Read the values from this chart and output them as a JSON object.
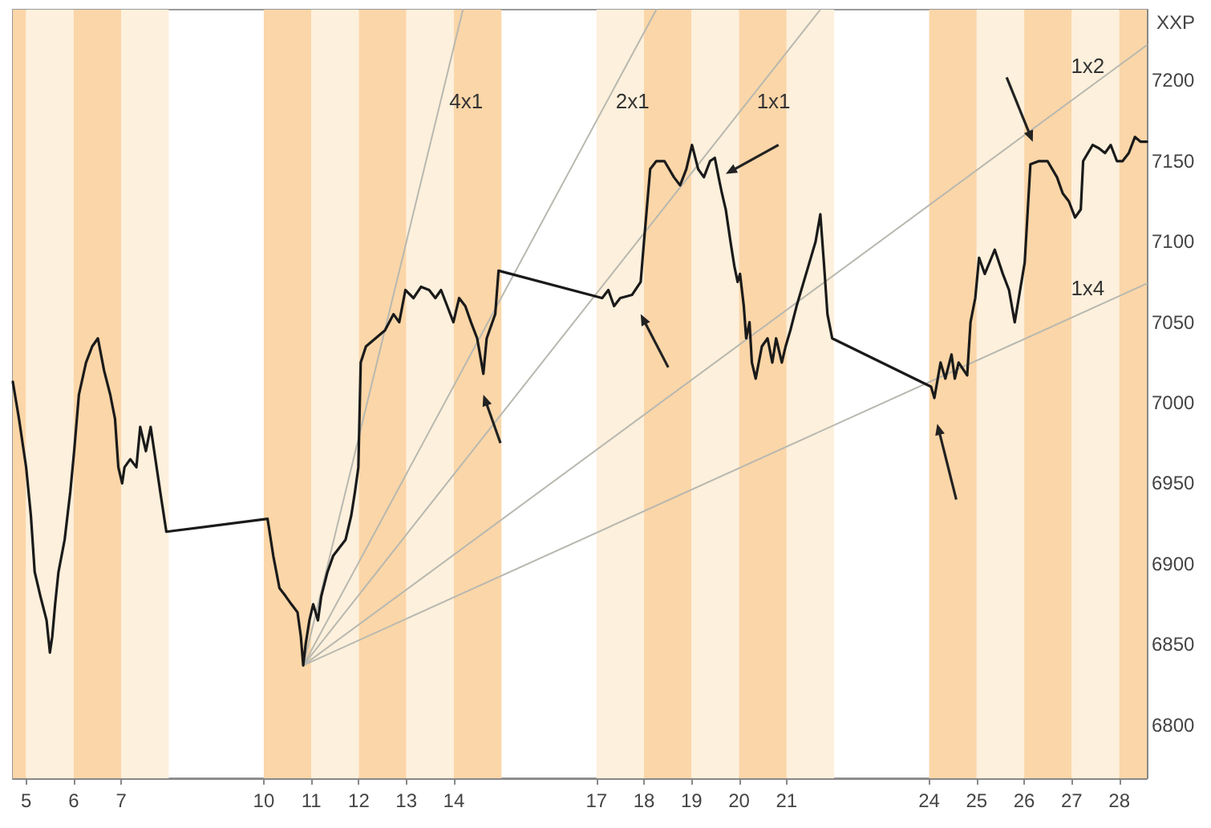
{
  "chart_data": {
    "type": "line",
    "ylabel": "XXP",
    "xlim": [
      4.72,
      28.58
    ],
    "xticks": [
      5,
      6,
      7,
      10,
      11,
      12,
      13,
      14,
      17,
      18,
      19,
      20,
      21,
      24,
      25,
      26,
      27,
      28
    ],
    "ylim": [
      6767,
      7244
    ],
    "yticks": [
      6800,
      6850,
      6900,
      6950,
      7000,
      7050,
      7100,
      7150,
      7200
    ],
    "grid": false,
    "legend": false,
    "marker": "none",
    "line_style": "solid",
    "series": [
      {
        "color": "#1a1a1a",
        "x": [
          4.72,
          4.85,
          5,
          5.1,
          5.18,
          5.3,
          5.43,
          5.5,
          5.55,
          5.61,
          5.68,
          5.81,
          5.93,
          6.01,
          6.11,
          6.26,
          6.39,
          6.51,
          6.64,
          6.77,
          6.87,
          6.94,
          7.02,
          7.07,
          7.19,
          7.32,
          7.4,
          7.52,
          7.62,
          7.72,
          7.82,
          7.95,
          10.08,
          10.2,
          10.33,
          10.46,
          10.58,
          10.71,
          10.78,
          10.83,
          10.88,
          10.96,
          11.04,
          11.14,
          11.21,
          11.34,
          11.46,
          11.59,
          11.72,
          11.84,
          11.92,
          11.99,
          12.04,
          12.15,
          12.35,
          12.55,
          12.73,
          12.85,
          12.98,
          13.15,
          13.31,
          13.48,
          13.61,
          13.73,
          13.86,
          13.99,
          14.11,
          14.24,
          14.36,
          14.49,
          14.62,
          14.69,
          14.87,
          14.94,
          17.12,
          17.25,
          17.37,
          17.5,
          17.75,
          17.93,
          18.0,
          18.13,
          18.26,
          18.43,
          18.63,
          18.76,
          18.89,
          19.01,
          19.14,
          19.26,
          19.39,
          19.49,
          19.57,
          19.64,
          19.72,
          19.82,
          19.9,
          19.97,
          20.02,
          20.1,
          20.15,
          20.22,
          20.27,
          20.35,
          20.48,
          20.6,
          20.7,
          20.78,
          20.9,
          20.98,
          21.08,
          21.21,
          21.36,
          21.46,
          21.61,
          21.71,
          21.79,
          21.86,
          21.96,
          24.04,
          24.11,
          24.24,
          24.34,
          24.47,
          24.54,
          24.62,
          24.8,
          24.87,
          24.97,
          25.05,
          25.17,
          25.38,
          25.55,
          25.68,
          25.8,
          26.01,
          26.13,
          26.31,
          26.49,
          26.69,
          26.81,
          26.94,
          27.07,
          27.19,
          27.24,
          27.44,
          27.57,
          27.7,
          27.82,
          27.95,
          28.07,
          28.2,
          28.33,
          28.45,
          28.58
        ],
        "values": [
          7013,
          6990,
          6960,
          6930,
          6895,
          6880,
          6865,
          6845,
          6855,
          6875,
          6895,
          6915,
          6945,
          6970,
          7005,
          7025,
          7035,
          7040,
          7020,
          7005,
          6990,
          6960,
          6950,
          6960,
          6965,
          6960,
          6985,
          6970,
          6985,
          6965,
          6945,
          6920,
          6928,
          6905,
          6885,
          6880,
          6875,
          6870,
          6855,
          6837,
          6850,
          6865,
          6875,
          6865,
          6880,
          6895,
          6905,
          6910,
          6915,
          6930,
          6945,
          6960,
          7025,
          7035,
          7040,
          7045,
          7055,
          7050,
          7070,
          7065,
          7072,
          7070,
          7065,
          7070,
          7060,
          7050,
          7065,
          7060,
          7050,
          7040,
          7018,
          7040,
          7055,
          7082,
          7065,
          7070,
          7060,
          7065,
          7067,
          7075,
          7100,
          7145,
          7150,
          7150,
          7140,
          7135,
          7145,
          7160,
          7145,
          7140,
          7150,
          7152,
          7140,
          7130,
          7120,
          7100,
          7085,
          7075,
          7080,
          7060,
          7040,
          7050,
          7025,
          7015,
          7035,
          7040,
          7025,
          7040,
          7025,
          7035,
          7045,
          7060,
          7075,
          7085,
          7100,
          7117,
          7085,
          7055,
          7040,
          7010,
          7003,
          7025,
          7015,
          7030,
          7015,
          7025,
          7017,
          7050,
          7065,
          7090,
          7080,
          7095,
          7080,
          7070,
          7050,
          7087,
          7148,
          7150,
          7150,
          7140,
          7130,
          7125,
          7115,
          7120,
          7150,
          7160,
          7158,
          7155,
          7160,
          7150,
          7150,
          7155,
          7165,
          7162,
          7162
        ]
      },
      {
        "name": "4x1",
        "color": "#b8b8b0",
        "x": [
          10.83,
          14.19
        ],
        "values": [
          6837,
          7244
        ]
      },
      {
        "name": "2x1",
        "color": "#b8b8b0",
        "x": [
          10.83,
          18.26
        ],
        "values": [
          6837,
          7244
        ]
      },
      {
        "name": "1x1",
        "color": "#b8b8b0",
        "x": [
          10.83,
          21.71
        ],
        "values": [
          6837,
          7244
        ]
      },
      {
        "name": "1x2",
        "color": "#b8b8b0",
        "x": [
          10.83,
          28.58
        ],
        "values": [
          6837,
          7222
        ]
      },
      {
        "name": "1x4",
        "color": "#b8b8b0",
        "x": [
          10.83,
          28.58
        ],
        "values": [
          6837,
          7074
        ]
      }
    ],
    "bands": [
      {
        "axis": "x",
        "from": 4.72,
        "to": 5,
        "color": "#fbd6a8"
      },
      {
        "axis": "x",
        "from": 5,
        "to": 6,
        "color": "#fdf0dc"
      },
      {
        "axis": "x",
        "from": 6,
        "to": 7,
        "color": "#fbd6a8"
      },
      {
        "axis": "x",
        "from": 7,
        "to": 8,
        "color": "#fdf0dc"
      },
      {
        "axis": "x",
        "from": 10,
        "to": 11,
        "color": "#fbd6a8"
      },
      {
        "axis": "x",
        "from": 11,
        "to": 12,
        "color": "#fdf0dc"
      },
      {
        "axis": "x",
        "from": 12,
        "to": 13,
        "color": "#fbd6a8"
      },
      {
        "axis": "x",
        "from": 13,
        "to": 14,
        "color": "#fdf0dc"
      },
      {
        "axis": "x",
        "from": 14,
        "to": 15,
        "color": "#fbd6a8"
      },
      {
        "axis": "x",
        "from": 17,
        "to": 18,
        "color": "#fdf0dc"
      },
      {
        "axis": "x",
        "from": 18,
        "to": 19,
        "color": "#fbd6a8"
      },
      {
        "axis": "x",
        "from": 19,
        "to": 20,
        "color": "#fdf0dc"
      },
      {
        "axis": "x",
        "from": 20,
        "to": 21,
        "color": "#fbd6a8"
      },
      {
        "axis": "x",
        "from": 21,
        "to": 22,
        "color": "#fdf0dc"
      },
      {
        "axis": "x",
        "from": 24,
        "to": 25,
        "color": "#fbd6a8"
      },
      {
        "axis": "x",
        "from": 25,
        "to": 26,
        "color": "#fdf0dc"
      },
      {
        "axis": "x",
        "from": 26,
        "to": 27,
        "color": "#fbd6a8"
      },
      {
        "axis": "x",
        "from": 27,
        "to": 28,
        "color": "#fdf0dc"
      },
      {
        "axis": "x",
        "from": 28,
        "to": 28.58,
        "color": "#fbd6a8"
      }
    ]
  }
}
